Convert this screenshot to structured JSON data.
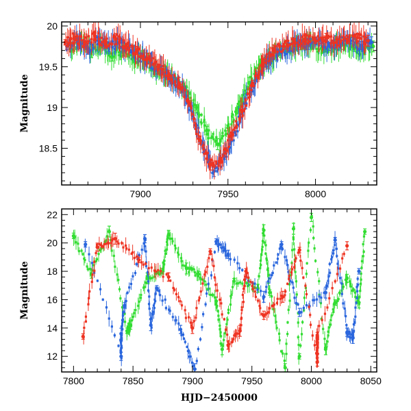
{
  "chart_data": [
    {
      "type": "scatter",
      "panel": "top",
      "title": "",
      "xlabel": "",
      "ylabel": "Magnitude",
      "xlim": [
        7855,
        8035
      ],
      "ylim": [
        20.05,
        18.05
      ],
      "y_inverted": true,
      "x_ticks": [
        7900,
        7950,
        8000
      ],
      "x_tick_labels": [
        "7900",
        "7950",
        "8000"
      ],
      "y_ticks": [
        18.5,
        19,
        19.5,
        20
      ],
      "y_tick_labels": [
        "18.5",
        "19",
        "19.5",
        "20"
      ],
      "grid": false,
      "legend": "none",
      "series": [
        {
          "color": "#33dd33",
          "points": [
            [
              7860,
              19.72
            ],
            [
              7866,
              19.8
            ],
            [
              7872,
              19.68
            ],
            [
              7878,
              19.78
            ],
            [
              7884,
              19.62
            ],
            [
              7890,
              19.7
            ],
            [
              7896,
              19.58
            ],
            [
              7902,
              19.62
            ],
            [
              7908,
              19.45
            ],
            [
              7914,
              19.42
            ],
            [
              7920,
              19.32
            ],
            [
              7926,
              19.2
            ],
            [
              7932,
              19.0
            ],
            [
              7938,
              18.72
            ],
            [
              7944,
              18.55
            ],
            [
              7950,
              18.75
            ],
            [
              7956,
              19.0
            ],
            [
              7962,
              19.3
            ],
            [
              7968,
              19.5
            ],
            [
              7974,
              19.6
            ],
            [
              7980,
              19.68
            ],
            [
              7986,
              19.72
            ],
            [
              7992,
              19.76
            ],
            [
              7998,
              19.78
            ],
            [
              8004,
              19.7
            ],
            [
              8010,
              19.74
            ],
            [
              8016,
              19.78
            ],
            [
              8022,
              19.72
            ],
            [
              8028,
              19.7
            ],
            [
              8033,
              19.75
            ]
          ]
        },
        {
          "color": "#2a66dd",
          "points": [
            [
              7858,
              19.75
            ],
            [
              7864,
              19.85
            ],
            [
              7870,
              19.72
            ],
            [
              7876,
              19.82
            ],
            [
              7882,
              19.74
            ],
            [
              7888,
              19.8
            ],
            [
              7894,
              19.7
            ],
            [
              7900,
              19.62
            ],
            [
              7906,
              19.55
            ],
            [
              7912,
              19.45
            ],
            [
              7918,
              19.35
            ],
            [
              7924,
              19.25
            ],
            [
              7930,
              18.9
            ],
            [
              7936,
              18.5
            ],
            [
              7942,
              18.22
            ],
            [
              7948,
              18.4
            ],
            [
              7954,
              18.7
            ],
            [
              7960,
              19.05
            ],
            [
              7966,
              19.35
            ],
            [
              7972,
              19.55
            ],
            [
              7978,
              19.65
            ],
            [
              7984,
              19.72
            ],
            [
              7990,
              19.8
            ],
            [
              7996,
              19.78
            ],
            [
              8002,
              19.82
            ],
            [
              8008,
              19.75
            ],
            [
              8014,
              19.8
            ],
            [
              8020,
              19.82
            ],
            [
              8026,
              19.76
            ],
            [
              8032,
              19.8
            ]
          ]
        },
        {
          "color": "#ee3322",
          "points": [
            [
              7857,
              19.8
            ],
            [
              7862,
              19.85
            ],
            [
              7868,
              19.8
            ],
            [
              7874,
              19.88
            ],
            [
              7880,
              19.78
            ],
            [
              7886,
              19.84
            ],
            [
              7892,
              19.75
            ],
            [
              7898,
              19.7
            ],
            [
              7904,
              19.6
            ],
            [
              7910,
              19.5
            ],
            [
              7916,
              19.4
            ],
            [
              7922,
              19.3
            ],
            [
              7928,
              19.05
            ],
            [
              7934,
              18.6
            ],
            [
              7940,
              18.3
            ],
            [
              7946,
              18.35
            ],
            [
              7952,
              18.65
            ],
            [
              7958,
              18.95
            ],
            [
              7964,
              19.3
            ],
            [
              7970,
              19.55
            ],
            [
              7976,
              19.7
            ],
            [
              7982,
              19.75
            ],
            [
              7988,
              19.8
            ],
            [
              7994,
              19.84
            ],
            [
              8000,
              19.82
            ],
            [
              8006,
              19.86
            ],
            [
              8012,
              19.8
            ],
            [
              8018,
              19.84
            ],
            [
              8024,
              19.86
            ],
            [
              8030,
              19.82
            ]
          ]
        }
      ]
    },
    {
      "type": "scatter",
      "panel": "bottom",
      "title": "",
      "xlabel": "HJD−2450000",
      "ylabel": "Magnitude",
      "xlim": [
        7790,
        8055
      ],
      "ylim": [
        22.4,
        10.9
      ],
      "y_inverted": true,
      "x_ticks": [
        7800,
        7850,
        7900,
        7950,
        8000,
        8050
      ],
      "x_tick_labels": [
        "7800",
        "7850",
        "7900",
        "7950",
        "8000",
        "8050"
      ],
      "y_ticks": [
        12,
        14,
        16,
        18,
        20,
        22
      ],
      "y_tick_labels": [
        "12",
        "14",
        "16",
        "18",
        "20",
        "22"
      ],
      "grid": false,
      "legend": "none",
      "series": [
        {
          "color": "#33dd33",
          "points": [
            [
              7800,
              20.5
            ],
            [
              7815,
              17.8
            ],
            [
              7830,
              20.8
            ],
            [
              7845,
              13.8
            ],
            [
              7848,
              14.2
            ],
            [
              7862,
              17.5
            ],
            [
              7875,
              18.0
            ],
            [
              7895,
              18.2
            ],
            [
              7905,
              17.8
            ],
            [
              7920,
              15.9
            ],
            [
              7925,
              12.5
            ],
            [
              7935,
              17.3
            ],
            [
              7955,
              16.8
            ],
            [
              7965,
              16.5
            ],
            [
              7978,
              11.2
            ],
            [
              7990,
              12.0
            ],
            [
              8000,
              21.8
            ],
            [
              8012,
              12.5
            ],
            [
              8020,
              15.8
            ],
            [
              8030,
              17.5
            ],
            [
              8040,
              15.8
            ],
            [
              8045,
              20.8
            ],
            [
              7880,
              20.6
            ],
            [
              7960,
              20.9
            ],
            [
              7985,
              21.0
            ]
          ]
        },
        {
          "color": "#2a66dd",
          "points": [
            [
              7810,
              19.9
            ],
            [
              7840,
              12.0
            ],
            [
              7840,
              13.6
            ],
            [
              7843,
              15.6
            ],
            [
              7865,
              14.2
            ],
            [
              7870,
              16.8
            ],
            [
              7890,
              13.9
            ],
            [
              7902,
              11.1
            ],
            [
              7930,
              19.2
            ],
            [
              7960,
              16.2
            ],
            [
              7990,
              15.1
            ],
            [
              8012,
              16.5
            ],
            [
              8030,
              13.7
            ],
            [
              8035,
              13.3
            ],
            [
              8040,
              18.0
            ],
            [
              7860,
              20.3
            ],
            [
              7920,
              20.1
            ],
            [
              7975,
              19.9
            ],
            [
              8020,
              20.2
            ]
          ]
        },
        {
          "color": "#ee3322",
          "points": [
            [
              7808,
              13.4
            ],
            [
              7900,
              14.0
            ],
            [
              7930,
              12.8
            ],
            [
              7940,
              13.8
            ],
            [
              7960,
              14.9
            ],
            [
              7976,
              16.2
            ],
            [
              8005,
              11.6
            ],
            [
              8005,
              13.0
            ],
            [
              8005,
              13.5
            ],
            [
              7880,
              17.6
            ],
            [
              7855,
              18.8
            ],
            [
              7820,
              19.7
            ],
            [
              7945,
              18.0
            ],
            [
              7990,
              19.5
            ],
            [
              8030,
              19.8
            ],
            [
              7835,
              20.3
            ],
            [
              7915,
              19.4
            ]
          ]
        }
      ]
    }
  ]
}
